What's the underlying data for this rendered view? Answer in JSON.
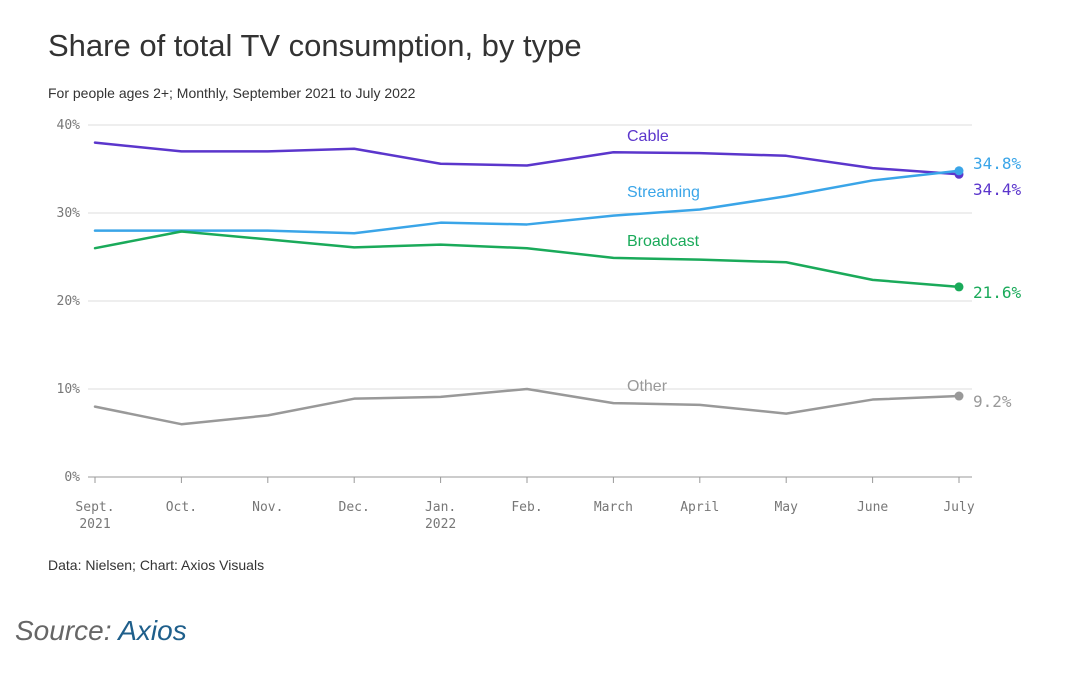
{
  "title": "Share of total TV consumption, by type",
  "subtitle": "For people ages 2+; Monthly, September 2021 to July 2022",
  "footer": "Data: Nielsen; Chart: Axios Visuals",
  "source": {
    "prefix": "Source: ",
    "link_text": "Axios"
  },
  "chart_data": {
    "type": "line",
    "x": [
      "Sept. 2021",
      "Oct.",
      "Nov.",
      "Dec.",
      "Jan. 2022",
      "Feb.",
      "March",
      "April",
      "May",
      "June",
      "July"
    ],
    "x_tick_labels": [
      [
        "Sept.",
        "2021"
      ],
      [
        "Oct."
      ],
      [
        "Nov."
      ],
      [
        "Dec."
      ],
      [
        "Jan.",
        "2022"
      ],
      [
        "Feb."
      ],
      [
        "March"
      ],
      [
        "April"
      ],
      [
        "May"
      ],
      [
        "June"
      ],
      [
        "July"
      ]
    ],
    "ylim": [
      0,
      40
    ],
    "y_ticks": [
      0,
      10,
      20,
      30,
      40
    ],
    "y_tick_labels": [
      "0%",
      "10%",
      "20%",
      "30%",
      "40%"
    ],
    "grid": true,
    "series": [
      {
        "name": "Cable",
        "color": "#5b36cc",
        "values": [
          38.0,
          37.0,
          37.0,
          37.3,
          35.6,
          35.4,
          36.9,
          36.8,
          36.5,
          35.1,
          34.4
        ],
        "end_label": "34.4%"
      },
      {
        "name": "Streaming",
        "color": "#3aa5e8",
        "values": [
          28.0,
          28.0,
          28.0,
          27.7,
          28.9,
          28.7,
          29.7,
          30.4,
          31.9,
          33.7,
          34.8
        ],
        "end_label": "34.8%"
      },
      {
        "name": "Broadcast",
        "color": "#1aaa5a",
        "values": [
          26.0,
          27.9,
          27.0,
          26.1,
          26.4,
          26.0,
          24.9,
          24.7,
          24.4,
          22.4,
          21.6
        ],
        "end_label": "21.6%"
      },
      {
        "name": "Other",
        "color": "#999999",
        "values": [
          8.0,
          6.0,
          7.0,
          8.9,
          9.1,
          10.0,
          8.4,
          8.2,
          7.2,
          8.8,
          9.2
        ],
        "end_label": "9.2%"
      }
    ]
  }
}
